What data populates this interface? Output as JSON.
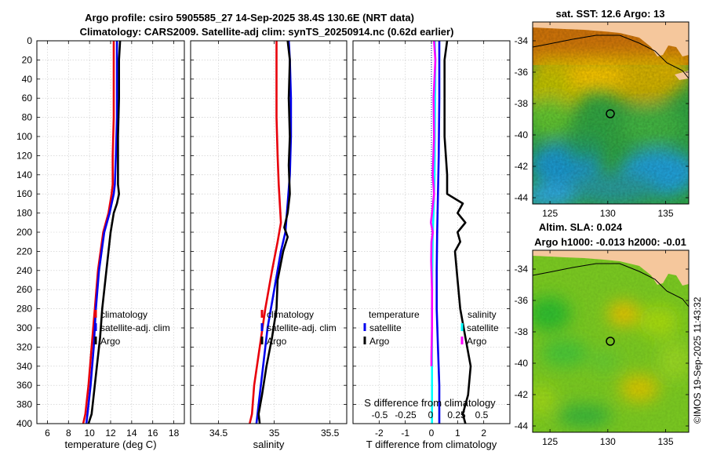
{
  "title": {
    "line1": "Argo profile: csiro 5905585_27 14-Sep-2025 38.4S 130.6E (NRT data)",
    "line2": "Climatology: CARS2009. Satellite-adj clim: synTS_20250914.nc (0.62d earlier)"
  },
  "colors": {
    "climatology": "#e8000b",
    "satellite": "#0000ee",
    "argo": "#000000",
    "satellite_salinity": "#00ffff",
    "argo_salinity": "#ff00ff"
  },
  "chart_data": [
    {
      "type": "line",
      "name": "temperature-panel",
      "xlabel": "temperature (deg C)",
      "ylabel": "",
      "xlim": [
        5,
        19
      ],
      "ylim": [
        400,
        0
      ],
      "xticks": [
        6,
        8,
        10,
        12,
        14,
        16,
        18
      ],
      "yticks": [
        0,
        20,
        40,
        60,
        80,
        100,
        120,
        140,
        160,
        180,
        200,
        220,
        240,
        260,
        280,
        300,
        320,
        340,
        360,
        380,
        400
      ],
      "grid": true,
      "legend": [
        "climatology",
        "satellite-adj. clim",
        "Argo"
      ],
      "series": [
        {
          "name": "climatology",
          "color": "#e8000b",
          "x": [
            12.3,
            12.3,
            12.3,
            12.2,
            12.2,
            12.1,
            11.8,
            11.3,
            10.8,
            10.5,
            10.2,
            9.9,
            9.6,
            9.4
          ],
          "y": [
            0,
            40,
            80,
            120,
            150,
            160,
            180,
            200,
            240,
            280,
            320,
            360,
            390,
            400
          ]
        },
        {
          "name": "satellite-adj. clim",
          "color": "#0000ee",
          "x": [
            12.6,
            12.6,
            12.6,
            12.5,
            12.4,
            12.3,
            11.9,
            11.4,
            10.9,
            10.6,
            10.4,
            10.1,
            9.8,
            9.7
          ],
          "y": [
            0,
            40,
            80,
            120,
            150,
            160,
            180,
            200,
            240,
            280,
            320,
            360,
            390,
            400
          ]
        },
        {
          "name": "Argo",
          "color": "#000000",
          "x": [
            12.9,
            12.8,
            12.8,
            12.7,
            12.7,
            12.7,
            12.8,
            12.6,
            12.3,
            12.0,
            11.8,
            11.5,
            11.2,
            11.0,
            10.7,
            10.4,
            10.2,
            9.9
          ],
          "y": [
            0,
            20,
            60,
            100,
            130,
            150,
            160,
            170,
            180,
            200,
            220,
            250,
            280,
            310,
            340,
            370,
            390,
            400
          ]
        }
      ]
    },
    {
      "type": "line",
      "name": "salinity-panel",
      "xlabel": "salinity",
      "xlim": [
        34.25,
        35.65
      ],
      "ylim": [
        400,
        0
      ],
      "xticks": [
        34.5,
        35,
        35.5
      ],
      "grid": true,
      "legend": [
        "climatology",
        "satellite-adj. clim",
        "Argo"
      ],
      "series": [
        {
          "name": "climatology",
          "color": "#e8000b",
          "x": [
            35.02,
            35.02,
            35.02,
            35.03,
            35.04,
            35.05,
            35.06,
            35.03,
            34.98,
            34.92,
            34.87,
            34.82,
            34.8,
            34.78
          ],
          "y": [
            0,
            40,
            80,
            120,
            150,
            170,
            190,
            210,
            240,
            280,
            320,
            360,
            390,
            400
          ]
        },
        {
          "name": "satellite-adj. clim",
          "color": "#0000ee",
          "x": [
            35.13,
            35.14,
            35.15,
            35.15,
            35.14,
            35.12,
            35.1,
            35.06,
            35.0,
            34.94,
            34.9,
            34.86,
            34.84
          ],
          "y": [
            0,
            20,
            60,
            100,
            140,
            170,
            200,
            220,
            260,
            300,
            340,
            380,
            400
          ]
        },
        {
          "name": "Argo",
          "color": "#000000",
          "x": [
            35.12,
            35.14,
            35.13,
            35.14,
            35.13,
            35.14,
            35.12,
            35.09,
            35.12,
            35.08,
            35.03,
            35.02,
            34.98,
            34.93,
            34.89,
            34.86,
            34.87
          ],
          "y": [
            0,
            20,
            60,
            100,
            130,
            160,
            180,
            195,
            205,
            220,
            250,
            280,
            310,
            340,
            370,
            390,
            400
          ]
        }
      ]
    },
    {
      "type": "line",
      "name": "difference-panel",
      "xlabel": "T difference from climatology",
      "xlabel_top": "S difference from climatology",
      "xlim": [
        -3,
        3
      ],
      "ylim": [
        400,
        0
      ],
      "xticks": [
        -2,
        -1,
        0,
        1,
        2
      ],
      "xticks_top": [
        "-0.5",
        "-0.25",
        "0",
        "0.25",
        "0.5"
      ],
      "grid": true,
      "legend_left": {
        "heading": "temperature",
        "items": [
          "satellite",
          "Argo"
        ]
      },
      "legend_right": {
        "heading": "salinity",
        "items": [
          "satellite",
          "Argo"
        ]
      },
      "series": [
        {
          "name": "temperature satellite",
          "color": "#0000ee",
          "x": [
            0.3,
            0.3,
            0.28,
            0.25,
            0.22,
            0.2,
            0.2,
            0.25,
            0.3,
            0.3
          ],
          "y": [
            0,
            60,
            120,
            160,
            200,
            240,
            280,
            320,
            360,
            400
          ]
        },
        {
          "name": "temperature Argo",
          "color": "#000000",
          "x": [
            0.6,
            0.5,
            0.5,
            0.5,
            0.6,
            0.6,
            1.2,
            1.0,
            1.3,
            1.0,
            1.1,
            0.9,
            1.0,
            1.1,
            1.3,
            1.5,
            1.4,
            1.2,
            1.3
          ],
          "y": [
            0,
            20,
            60,
            100,
            140,
            160,
            170,
            180,
            190,
            200,
            210,
            220,
            250,
            280,
            310,
            340,
            370,
            390,
            400
          ]
        },
        {
          "name": "salinity satellite",
          "color": "#00ffff",
          "x": [
            0.13,
            0.15,
            0.14,
            0.13,
            0.12,
            0.1,
            0.08,
            0.05,
            0.03,
            0.02,
            0.02,
            0.02,
            0.02
          ],
          "y": [
            0,
            20,
            60,
            100,
            140,
            160,
            180,
            200,
            240,
            280,
            320,
            360,
            400
          ]
        },
        {
          "name": "salinity Argo",
          "color": "#ff00ff",
          "x": [
            0.1,
            0.15,
            0.08,
            0.1,
            0.05,
            0.1,
            0.06,
            0.02,
            -0.02,
            0.05,
            0.0,
            -0.01,
            0.02,
            0.02,
            0.0,
            0.0
          ],
          "y": [
            0,
            20,
            60,
            100,
            140,
            160,
            170,
            180,
            190,
            200,
            210,
            230,
            260,
            300,
            330,
            340
          ]
        }
      ]
    },
    {
      "type": "heatmap",
      "name": "sst-map",
      "title": "sat. SST: 12.6 Argo: 13",
      "xlim": [
        123.5,
        137
      ],
      "ylim": [
        -44.4,
        -32.8
      ],
      "xticks": [
        125,
        130,
        135
      ],
      "yticks": [
        -34,
        -36,
        -38,
        -40,
        -42,
        -44
      ],
      "marker": {
        "lon": 130.6,
        "lat": -38.4
      }
    },
    {
      "type": "heatmap",
      "name": "sla-map",
      "title": "Altim. SLA: 0.024",
      "subtitle": "Argo h1000: -0.013 h2000: -0.01",
      "xlim": [
        123.5,
        137
      ],
      "ylim": [
        -44.4,
        -32.8
      ],
      "xticks": [
        125,
        130,
        135
      ],
      "yticks": [
        -34,
        -36,
        -38,
        -40,
        -42,
        -44
      ],
      "marker": {
        "lon": 130.6,
        "lat": -38.4
      }
    }
  ],
  "watermark": "©IMOS 19-Sep-2025 11:43:32"
}
